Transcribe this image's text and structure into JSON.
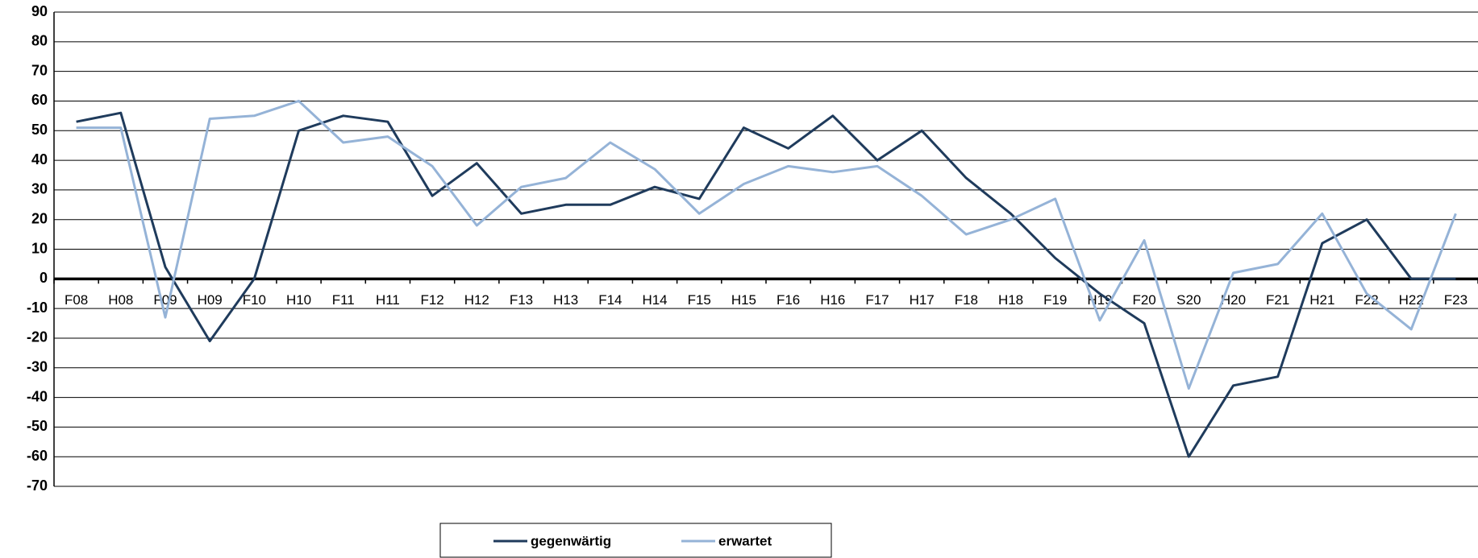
{
  "chart_data": {
    "type": "line",
    "categories": [
      "F08",
      "H08",
      "F09",
      "H09",
      "F10",
      "H10",
      "F11",
      "H11",
      "F12",
      "H12",
      "F13",
      "H13",
      "F14",
      "H14",
      "F15",
      "H15",
      "F16",
      "H16",
      "F17",
      "H17",
      "F18",
      "H18",
      "F19",
      "H19",
      "F20",
      "S20",
      "H20",
      "F21",
      "H21",
      "F22",
      "H22",
      "F23"
    ],
    "series": [
      {
        "name": "gegenwärtig",
        "color": "#1f3b5c",
        "values": [
          53,
          56,
          4,
          -21,
          0,
          50,
          55,
          53,
          28,
          39,
          22,
          25,
          25,
          31,
          27,
          51,
          44,
          55,
          40,
          50,
          34,
          22,
          7,
          -5,
          -15,
          -60,
          -36,
          -33,
          12,
          20,
          0,
          0
        ]
      },
      {
        "name": "erwartet",
        "color": "#95b3d7",
        "values": [
          51,
          51,
          -13,
          54,
          55,
          60,
          46,
          48,
          38,
          18,
          31,
          34,
          46,
          37,
          22,
          32,
          38,
          36,
          38,
          28,
          15,
          20,
          27,
          -14,
          13,
          -37,
          2,
          5,
          22,
          -5,
          -17,
          22
        ]
      }
    ],
    "ylim": [
      -70,
      90
    ],
    "yticks": [
      -70,
      -60,
      -50,
      -40,
      -30,
      -20,
      -10,
      0,
      10,
      20,
      30,
      40,
      50,
      60,
      70,
      80,
      90
    ],
    "grid": true
  }
}
